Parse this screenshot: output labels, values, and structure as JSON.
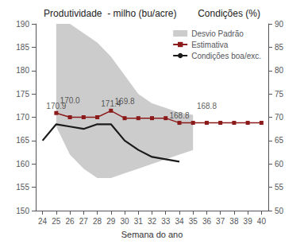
{
  "chart_data": {
    "type": "line",
    "title": "Produtividade  - milho (bu/acre)        Condições (%)",
    "xlabel": "Semana do ano",
    "xlim": [
      23.5,
      40.5
    ],
    "xticks": [
      24,
      25,
      26,
      27,
      28,
      29,
      30,
      31,
      32,
      33,
      34,
      35,
      36,
      37,
      38,
      39,
      40
    ],
    "ylim": [
      150,
      190
    ],
    "yticks": [
      150,
      155,
      160,
      165,
      170,
      175,
      180,
      185,
      190
    ],
    "y2lim": [
      50,
      90
    ],
    "y2ticks": [
      50,
      55,
      60,
      65,
      70,
      75,
      80,
      85,
      90
    ],
    "grid": false,
    "legend": "upper right",
    "series": [
      {
        "name": "Desvio Padrão",
        "type": "band",
        "color": "#CCCCCC",
        "x": [
          25,
          26,
          27,
          28,
          29,
          30,
          31,
          32,
          33,
          34,
          35
        ],
        "upper": [
          190,
          190,
          188,
          186,
          183,
          179,
          175,
          173,
          172,
          171,
          170.5
        ],
        "lower": [
          168,
          162,
          159,
          157,
          157,
          158,
          159,
          160,
          161,
          162,
          163
        ]
      },
      {
        "name": "Estimativa",
        "type": "line",
        "color": "#8B1A1A",
        "marker": "square",
        "x": [
          25,
          26,
          27,
          28,
          29,
          30,
          31,
          32,
          33,
          34,
          35,
          36,
          37,
          38,
          39,
          40
        ],
        "values": [
          170.9,
          170.0,
          170.0,
          170.0,
          171.4,
          169.8,
          169.8,
          169.8,
          169.8,
          168.8,
          168.8,
          168.8,
          168.8,
          168.8,
          168.8,
          168.8
        ]
      },
      {
        "name": "Condições boa/exc.",
        "type": "line",
        "color": "#1a1a1a",
        "axis": "y2",
        "x": [
          24,
          25,
          26,
          27,
          28,
          29,
          30,
          31,
          32,
          33,
          34
        ],
        "values": [
          65,
          68.5,
          68.0,
          67.5,
          68.5,
          68.5,
          65.0,
          63.0,
          61.5,
          61.0,
          60.5
        ]
      }
    ],
    "annotations": [
      {
        "x": 25,
        "y": 170.9,
        "text": "170.9"
      },
      {
        "x": 26,
        "y": 170.0,
        "text": "170.0"
      },
      {
        "x": 29,
        "y": 171.4,
        "text": "171.4"
      },
      {
        "x": 30,
        "y": 169.8,
        "text": "169.8"
      },
      {
        "x": 34,
        "y": 168.8,
        "text": "168.8"
      },
      {
        "x": 36,
        "y": 168.8,
        "text": "168.8"
      }
    ]
  }
}
